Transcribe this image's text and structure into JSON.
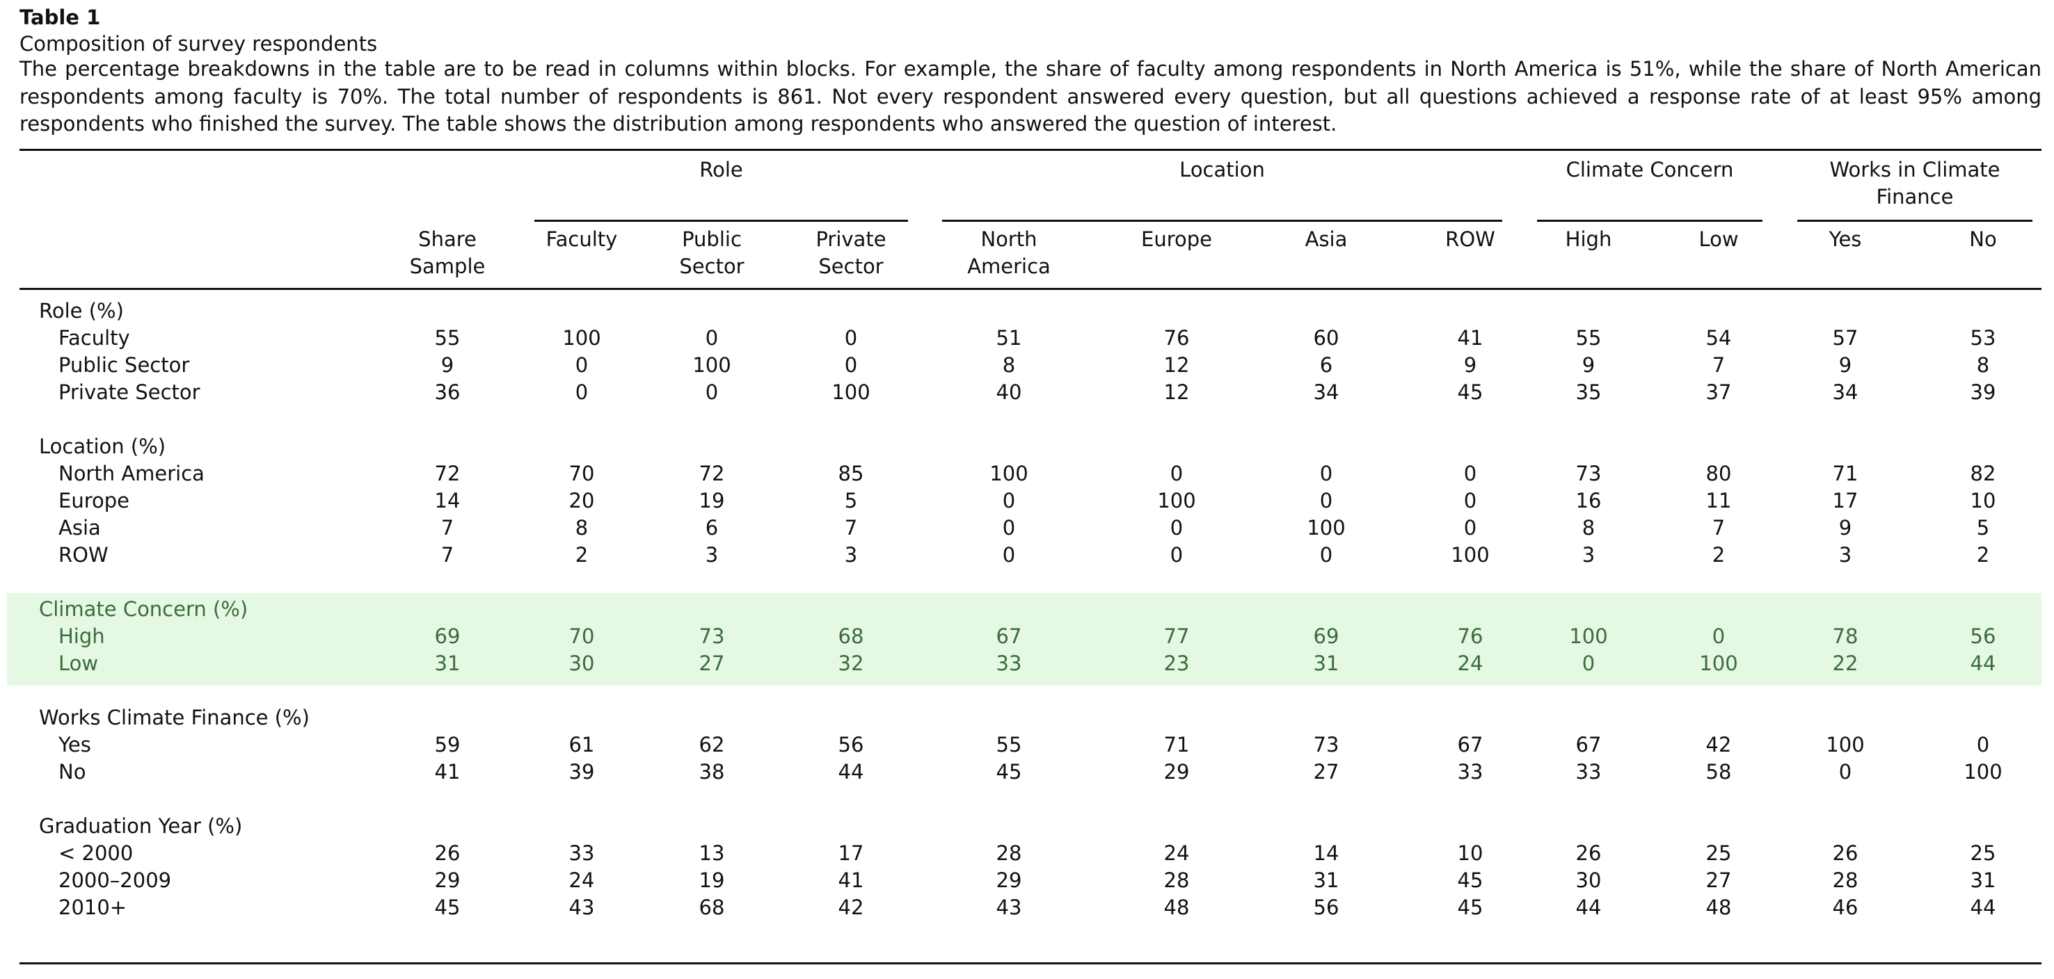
{
  "table": {
    "label": "Table 1",
    "title": "Composition of survey respondents",
    "caption": "The percentage breakdowns in the table are to be read in columns within blocks. For example, the share of faculty among respondents in North America is 51%, while the share of North American respondents among faculty is 70%. The total number of respondents is 861. Not every respondent answered every question, but all questions achieved a response rate of at least 95% among respondents who finished the survey. The table shows the distribution among respondents who answered the question of interest.",
    "column_groups": [
      {
        "label": "Role"
      },
      {
        "label": "Location"
      },
      {
        "label": "Climate Concern"
      },
      {
        "label": "Works in Climate Finance"
      }
    ],
    "columns": [
      "Share Sample",
      "Faculty",
      "Public Sector",
      "Private Sector",
      "North America",
      "Europe",
      "Asia",
      "ROW",
      "High",
      "Low",
      "Yes",
      "No"
    ],
    "blocks": [
      {
        "title": "Role (%)",
        "rows": [
          {
            "label": "Faculty",
            "values": [
              "55",
              "100",
              "0",
              "0",
              "51",
              "76",
              "60",
              "41",
              "55",
              "54",
              "57",
              "53"
            ]
          },
          {
            "label": "Public Sector",
            "values": [
              "9",
              "0",
              "100",
              "0",
              "8",
              "12",
              "6",
              "9",
              "9",
              "7",
              "9",
              "8"
            ]
          },
          {
            "label": "Private Sector",
            "values": [
              "36",
              "0",
              "0",
              "100",
              "40",
              "12",
              "34",
              "45",
              "35",
              "37",
              "34",
              "39"
            ]
          }
        ]
      },
      {
        "title": "Location (%)",
        "rows": [
          {
            "label": "North America",
            "values": [
              "72",
              "70",
              "72",
              "85",
              "100",
              "0",
              "0",
              "0",
              "73",
              "80",
              "71",
              "82"
            ]
          },
          {
            "label": "Europe",
            "values": [
              "14",
              "20",
              "19",
              "5",
              "0",
              "100",
              "0",
              "0",
              "16",
              "11",
              "17",
              "10"
            ]
          },
          {
            "label": "Asia",
            "values": [
              "7",
              "8",
              "6",
              "7",
              "0",
              "0",
              "100",
              "0",
              "8",
              "7",
              "9",
              "5"
            ]
          },
          {
            "label": "ROW",
            "values": [
              "7",
              "2",
              "3",
              "3",
              "0",
              "0",
              "0",
              "100",
              "3",
              "2",
              "3",
              "2"
            ]
          }
        ]
      },
      {
        "title": "Climate Concern (%)",
        "highlight": true,
        "rows": [
          {
            "label": "High",
            "values": [
              "69",
              "70",
              "73",
              "68",
              "67",
              "77",
              "69",
              "76",
              "100",
              "0",
              "78",
              "56"
            ]
          },
          {
            "label": "Low",
            "values": [
              "31",
              "30",
              "27",
              "32",
              "33",
              "23",
              "31",
              "24",
              "0",
              "100",
              "22",
              "44"
            ]
          }
        ]
      },
      {
        "title": "Works Climate Finance (%)",
        "rows": [
          {
            "label": "Yes",
            "values": [
              "59",
              "61",
              "62",
              "56",
              "55",
              "71",
              "73",
              "67",
              "67",
              "42",
              "100",
              "0"
            ]
          },
          {
            "label": "No",
            "values": [
              "41",
              "39",
              "38",
              "44",
              "45",
              "29",
              "27",
              "33",
              "33",
              "58",
              "0",
              "100"
            ]
          }
        ]
      },
      {
        "title": "Graduation Year (%)",
        "rows": [
          {
            "label": "< 2000",
            "values": [
              "26",
              "33",
              "13",
              "17",
              "28",
              "24",
              "14",
              "10",
              "26",
              "25",
              "26",
              "25"
            ]
          },
          {
            "label": "2000–2009",
            "values": [
              "29",
              "24",
              "19",
              "41",
              "29",
              "28",
              "31",
              "45",
              "30",
              "27",
              "28",
              "31"
            ]
          },
          {
            "label": "2010+",
            "values": [
              "45",
              "43",
              "68",
              "42",
              "43",
              "48",
              "56",
              "45",
              "44",
              "48",
              "46",
              "44"
            ]
          }
        ]
      }
    ],
    "colors": {
      "highlight_bg": "#e4f8e4",
      "highlight_text": "#3d6b3d",
      "text": "#111111"
    }
  }
}
